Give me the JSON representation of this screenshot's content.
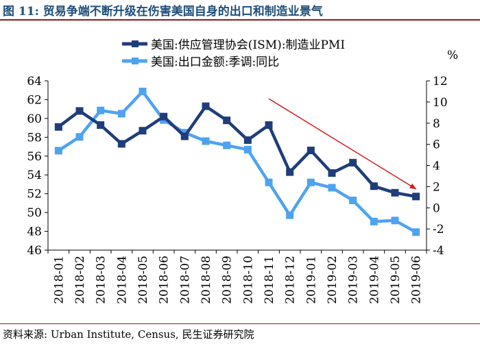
{
  "title": "图 11:  贸易争端不断升级在伤害美国自身的出口和制造业景气",
  "source": "资料来源:  Urban Institute,  Census,  民生证券研究院",
  "chart_data": {
    "type": "line",
    "categories": [
      "2018-01",
      "2018-02",
      "2018-03",
      "2018-04",
      "2018-05",
      "2018-06",
      "2018-07",
      "2018-08",
      "2018-09",
      "2018-10",
      "2018-11",
      "2018-12",
      "2019-01",
      "2019-02",
      "2019-03",
      "2019-04",
      "2019-05",
      "2019-06"
    ],
    "series": [
      {
        "name": "美国:供应管理协会(ISM):制造业PMI",
        "axis": "left",
        "color": "#1f3d7a",
        "marker": "square",
        "values": [
          59.1,
          60.8,
          59.3,
          57.3,
          58.7,
          60.2,
          58.1,
          61.3,
          59.8,
          57.7,
          59.3,
          54.3,
          56.6,
          54.2,
          55.3,
          52.8,
          52.1,
          51.7
        ]
      },
      {
        "name": "美国:出口金额:季调:同比",
        "axis": "right",
        "color": "#4da3f0",
        "marker": "square",
        "values": [
          5.4,
          6.7,
          9.2,
          8.9,
          11.0,
          8.3,
          7.1,
          6.3,
          5.9,
          5.5,
          2.4,
          -0.7,
          2.4,
          1.9,
          0.7,
          -1.3,
          -1.2,
          -2.3
        ]
      }
    ],
    "y_left": {
      "min": 46,
      "max": 64,
      "ticks": [
        46,
        48,
        50,
        52,
        54,
        56,
        58,
        60,
        62,
        64
      ]
    },
    "y_right": {
      "min": -4,
      "max": 12,
      "ticks": [
        -4,
        -2,
        0,
        2,
        4,
        6,
        8,
        10,
        12
      ],
      "unit_label": "%"
    },
    "legend_position": "top-left",
    "grid": false,
    "annotation": {
      "type": "arrow",
      "color": "#d42020",
      "from": [
        "2018-11",
        62.1
      ],
      "to": [
        "2019-06",
        52.5
      ]
    }
  }
}
